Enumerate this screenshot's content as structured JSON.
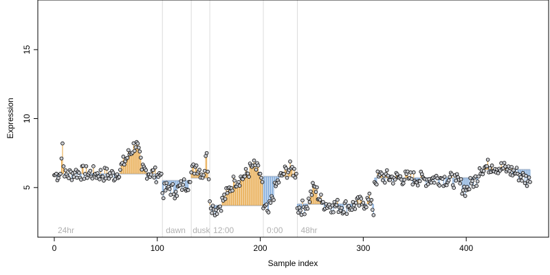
{
  "chart_data": {
    "type": "scatter",
    "title": "",
    "xlabel": "Sample index",
    "ylabel": "Expression",
    "xlim": [
      -16,
      480
    ],
    "ylim": [
      1.4,
      18.6
    ],
    "xticks": [
      0,
      100,
      200,
      300,
      400
    ],
    "yticks": [
      5,
      10,
      15
    ],
    "vlines": [
      105,
      133,
      151,
      203,
      236
    ],
    "segment_labels": [
      {
        "text": "24hr",
        "x": 2
      },
      {
        "text": "dawn",
        "x": 107
      },
      {
        "text": "dusk",
        "x": 133
      },
      {
        "text": "12:00",
        "x": 153
      },
      {
        "text": "0:00",
        "x": 205
      },
      {
        "text": "48hr",
        "x": 238
      }
    ],
    "fitted_segments": [
      {
        "x": [
          0,
          104
        ],
        "y": 6.0
      },
      {
        "x": [
          105,
          132
        ],
        "y": 5.5
      },
      {
        "x": [
          133,
          150
        ],
        "y": 5.7
      },
      {
        "x": [
          151,
          202
        ],
        "y": 3.7
      },
      {
        "x": [
          203,
          235
        ],
        "y": 5.8
      },
      {
        "x": [
          236,
          310
        ],
        "y": 3.8
      },
      {
        "x": [
          311,
          412
        ],
        "y": 5.7
      },
      {
        "x": [
          413,
          462
        ],
        "y": 6.3
      }
    ],
    "anchors": [
      [
        0,
        5.9
      ],
      [
        6,
        6.0
      ],
      [
        8,
        8.2
      ],
      [
        10,
        5.8
      ],
      [
        20,
        6.1
      ],
      [
        40,
        6.0
      ],
      [
        60,
        5.9
      ],
      [
        80,
        8.3
      ],
      [
        85,
        6.3
      ],
      [
        100,
        5.9
      ],
      [
        104,
        6.0
      ],
      [
        105,
        4.6
      ],
      [
        110,
        5.0
      ],
      [
        118,
        4.7
      ],
      [
        125,
        5.2
      ],
      [
        132,
        5.4
      ],
      [
        133,
        6.1
      ],
      [
        138,
        6.6
      ],
      [
        145,
        5.9
      ],
      [
        148,
        7.5
      ],
      [
        150,
        5.6
      ],
      [
        151,
        4.0
      ],
      [
        155,
        3.4
      ],
      [
        160,
        3.6
      ],
      [
        168,
        4.6
      ],
      [
        175,
        5.5
      ],
      [
        185,
        5.8
      ],
      [
        193,
        6.6
      ],
      [
        200,
        6.0
      ],
      [
        202,
        5.4
      ],
      [
        203,
        3.5
      ],
      [
        208,
        3.2
      ],
      [
        215,
        5.1
      ],
      [
        222,
        6.0
      ],
      [
        230,
        6.4
      ],
      [
        235,
        6.0
      ],
      [
        236,
        3.5
      ],
      [
        245,
        3.6
      ],
      [
        252,
        5.1
      ],
      [
        260,
        3.9
      ],
      [
        270,
        3.7
      ],
      [
        285,
        3.6
      ],
      [
        300,
        3.9
      ],
      [
        308,
        4.1
      ],
      [
        310,
        3.0
      ],
      [
        311,
        5.4
      ],
      [
        315,
        5.8
      ],
      [
        330,
        5.7
      ],
      [
        345,
        5.7
      ],
      [
        360,
        5.6
      ],
      [
        375,
        5.7
      ],
      [
        390,
        5.5
      ],
      [
        400,
        4.8
      ],
      [
        405,
        5.3
      ],
      [
        412,
        5.8
      ],
      [
        413,
        6.4
      ],
      [
        425,
        6.6
      ],
      [
        440,
        6.3
      ],
      [
        450,
        6.0
      ],
      [
        462,
        5.4
      ]
    ],
    "n_points": 463,
    "colors": {
      "above_fit": "#e6a23c",
      "below_fit": "#7aa6d8",
      "fit_line": "#c0c8d4",
      "vline": "#dcdcdc",
      "segment_label": "#b0b0b0",
      "axis": "#000000",
      "point_fill": "#c9cbd0"
    }
  }
}
